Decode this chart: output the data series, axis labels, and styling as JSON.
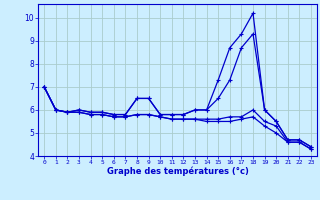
{
  "title": "Graphe des températures (°c)",
  "bg_color": "#cceeff",
  "grid_color": "#aacccc",
  "line_color": "#0000cc",
  "marker": "+",
  "xlim": [
    -0.5,
    23.5
  ],
  "ylim": [
    4.0,
    10.6
  ],
  "xticks": [
    0,
    1,
    2,
    3,
    4,
    5,
    6,
    7,
    8,
    9,
    10,
    11,
    12,
    13,
    14,
    15,
    16,
    17,
    18,
    19,
    20,
    21,
    22,
    23
  ],
  "yticks": [
    4,
    5,
    6,
    7,
    8,
    9,
    10
  ],
  "series1": [
    7.0,
    6.0,
    5.9,
    6.0,
    5.9,
    5.9,
    5.8,
    5.8,
    6.5,
    6.5,
    5.8,
    5.8,
    5.8,
    6.0,
    6.0,
    7.3,
    8.7,
    9.3,
    10.2,
    6.0,
    5.5,
    4.7,
    4.7,
    4.4
  ],
  "series2": [
    7.0,
    6.0,
    5.9,
    6.0,
    5.9,
    5.9,
    5.8,
    5.8,
    6.5,
    6.5,
    5.8,
    5.8,
    5.8,
    6.0,
    6.0,
    6.5,
    7.3,
    8.7,
    9.3,
    6.0,
    5.5,
    4.7,
    4.7,
    4.4
  ],
  "series3": [
    7.0,
    6.0,
    5.9,
    5.9,
    5.8,
    5.8,
    5.7,
    5.7,
    5.8,
    5.8,
    5.7,
    5.6,
    5.6,
    5.6,
    5.6,
    5.6,
    5.7,
    5.7,
    6.0,
    5.5,
    5.3,
    4.6,
    4.6,
    4.3
  ],
  "series4": [
    7.0,
    6.0,
    5.9,
    5.9,
    5.8,
    5.8,
    5.7,
    5.7,
    5.8,
    5.8,
    5.7,
    5.6,
    5.6,
    5.6,
    5.5,
    5.5,
    5.5,
    5.6,
    5.7,
    5.3,
    5.0,
    4.6,
    4.6,
    4.3
  ]
}
